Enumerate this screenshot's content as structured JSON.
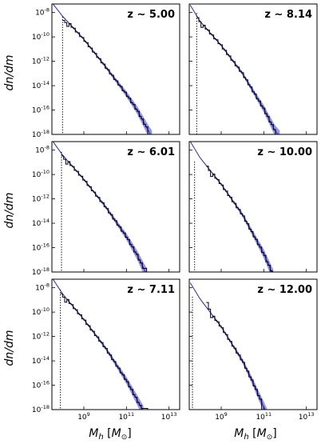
{
  "chart_data": {
    "type": "line",
    "layout": {
      "rows": 3,
      "cols": 2,
      "sharex": true,
      "sharey": true
    },
    "xlabel": "M_h [M_⊙]",
    "ylabel": "dn/dm",
    "xscale": "log",
    "yscale": "log",
    "xlim_log10": [
      7.5,
      13.5
    ],
    "ylim_log10": [
      -18,
      -7.3
    ],
    "xticks_log10": [
      9,
      11,
      13
    ],
    "yticks_log10": [
      -8,
      -10,
      -12,
      -14,
      -16,
      -18
    ],
    "colors": {
      "band": "#7070e8",
      "model_line": "#2a2aa8",
      "histogram": "#000000"
    },
    "panels": [
      {
        "redshift_label": "z ∼ 5.00",
        "mass_limit_log10": 8.0,
        "hist_start_log10": 8.0,
        "hist_start_value_log10": -8.6,
        "hist_end_log10": 12.0,
        "hist_end_value_log10": -17.9,
        "model_points_log10": [
          [
            7.55,
            -7.3
          ],
          [
            8,
            -8.3
          ],
          [
            9,
            -10.2
          ],
          [
            10,
            -12.4
          ],
          [
            11,
            -14.7
          ],
          [
            11.5,
            -16.0
          ],
          [
            12,
            -17.6
          ],
          [
            12.2,
            -18.2
          ]
        ],
        "band_halfwidth_dex": [
          0.06,
          0.5
        ]
      },
      {
        "redshift_label": "z ∼ 8.14",
        "mass_limit_log10": 7.85,
        "hist_start_log10": 7.85,
        "hist_start_value_log10": -8.3,
        "hist_end_log10": 11.5,
        "hist_end_value_log10": -17.6,
        "model_points_log10": [
          [
            7.55,
            -7.4
          ],
          [
            8,
            -8.7
          ],
          [
            9,
            -10.7
          ],
          [
            10,
            -13.0
          ],
          [
            11,
            -15.9
          ],
          [
            11.5,
            -17.6
          ],
          [
            11.75,
            -18.2
          ]
        ],
        "band_halfwidth_dex": [
          0.06,
          0.5
        ]
      },
      {
        "redshift_label": "z ∼ 6.01",
        "mass_limit_log10": 7.95,
        "hist_start_log10": 7.95,
        "hist_start_value_log10": -8.4,
        "hist_end_log10": 12.0,
        "hist_end_value_log10": -17.7,
        "model_points_log10": [
          [
            7.55,
            -7.3
          ],
          [
            8,
            -8.4
          ],
          [
            9,
            -10.4
          ],
          [
            10,
            -12.6
          ],
          [
            11,
            -15.1
          ],
          [
            11.5,
            -16.6
          ],
          [
            11.95,
            -18.2
          ]
        ],
        "band_halfwidth_dex": [
          0.06,
          0.5
        ]
      },
      {
        "redshift_label": "z ∼ 10.00",
        "mass_limit_log10": 7.75,
        "hist_start_log10": 8.3,
        "hist_start_value_log10": -9.2,
        "hist_end_log10": 11.4,
        "hist_end_value_log10": -17.9,
        "model_points_log10": [
          [
            7.55,
            -7.3
          ],
          [
            8,
            -8.6
          ],
          [
            9,
            -10.8
          ],
          [
            10,
            -13.3
          ],
          [
            11,
            -16.5
          ],
          [
            11.3,
            -17.7
          ],
          [
            11.45,
            -18.3
          ]
        ],
        "band_halfwidth_dex": [
          0.06,
          0.5
        ]
      },
      {
        "redshift_label": "z ∼ 7.11",
        "mass_limit_log10": 7.9,
        "hist_start_log10": 7.9,
        "hist_start_value_log10": -8.4,
        "hist_end_log10": 12.0,
        "hist_end_value_log10": -17.9,
        "model_points_log10": [
          [
            7.55,
            -7.3
          ],
          [
            8,
            -8.5
          ],
          [
            9,
            -10.6
          ],
          [
            10,
            -12.9
          ],
          [
            11,
            -15.6
          ],
          [
            11.5,
            -17.2
          ],
          [
            11.8,
            -18.2
          ]
        ],
        "band_halfwidth_dex": [
          0.06,
          0.5
        ]
      },
      {
        "redshift_label": "z ∼ 12.00",
        "mass_limit_log10": 7.65,
        "hist_start_log10": 8.3,
        "hist_start_value_log10": -9.0,
        "hist_end_log10": 10.9,
        "hist_end_value_log10": -18.0,
        "model_points_log10": [
          [
            7.55,
            -7.6
          ],
          [
            8,
            -8.9
          ],
          [
            9,
            -11.2
          ],
          [
            10,
            -14.0
          ],
          [
            10.5,
            -15.8
          ],
          [
            11,
            -17.8
          ],
          [
            11.15,
            -18.4
          ]
        ],
        "band_halfwidth_dex": [
          0.06,
          0.5
        ]
      }
    ]
  }
}
